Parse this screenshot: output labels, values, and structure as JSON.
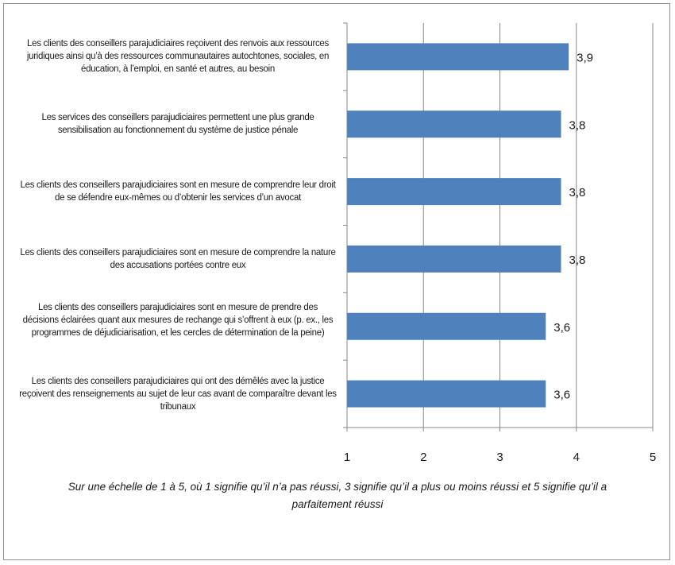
{
  "chart_data": {
    "type": "bar",
    "orientation": "horizontal",
    "categories": [
      "Les clients des conseillers parajudiciaires reçoivent des renvois aux ressources juridiques ainsi qu’à des ressources communautaires autochtones, sociales, en éducation, à l’emploi, en santé et autres, au besoin",
      "Les services des conseillers parajudiciaires permettent une plus grande sensibilisation au fonctionnement du système de justice pénale",
      "Les clients des conseillers parajudiciaires sont en mesure de comprendre leur droit de se défendre eux-mêmes ou d’obtenir les services d’un avocat",
      "Les clients des conseillers parajudiciaires sont en mesure de comprendre la nature des accusations portées contre eux",
      "Les clients des conseillers parajudiciaires sont en mesure de prendre des décisions éclairées quant aux mesures de rechange qui s’offrent à eux (p. ex., les programmes de déjudiciarisation, et les cercles de détermination de la peine)",
      "Les clients des conseillers parajudiciaires qui ont des démêlés avec la justice reçoivent des renseignements au sujet de leur cas avant de comparaître devant les tribunaux"
    ],
    "values": [
      3.9,
      3.8,
      3.8,
      3.8,
      3.6,
      3.6
    ],
    "value_labels": [
      "3,9",
      "3,8",
      "3,8",
      "3,8",
      "3,6",
      "3,6"
    ],
    "xlim": [
      1,
      5
    ],
    "xticks": [
      "1",
      "2",
      "3",
      "4",
      "5"
    ],
    "xlabel": "Sur une échelle de 1 à 5, où 1 signifie qu’il n’a pas réussi, 3 signifie qu’il a plus ou moins réussi et 5 signifie qu’il a parfaitement réussi",
    "grid": "vertical",
    "bar_color": "#4f81bd",
    "grid_color": "#878787"
  }
}
